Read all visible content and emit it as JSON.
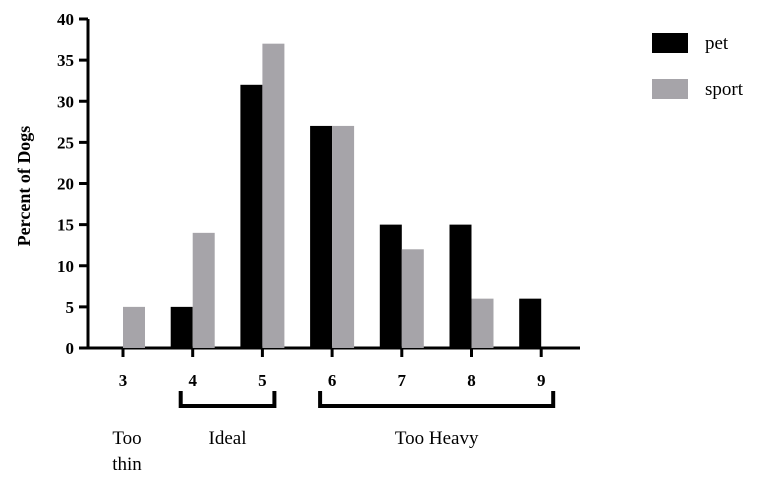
{
  "chart_data": {
    "type": "bar",
    "categories": [
      "3",
      "4",
      "5",
      "6",
      "7",
      "8",
      "9"
    ],
    "series": [
      {
        "name": "pet",
        "values": [
          0,
          5,
          32,
          27,
          15,
          15,
          6
        ],
        "color": "#000000"
      },
      {
        "name": "sport",
        "values": [
          5,
          14,
          37,
          27,
          12,
          6,
          0
        ],
        "color": "#a6a4a9"
      }
    ],
    "title": "",
    "xlabel": "",
    "ylabel": "Percent of Dogs",
    "ylim": [
      0,
      40
    ],
    "yticks": [
      "0",
      "5",
      "10",
      "15",
      "20",
      "25",
      "30",
      "35",
      "40"
    ],
    "grid": false,
    "legend_position": "top-right",
    "groups": [
      {
        "label": "Too\nthin",
        "categories": [
          "3"
        ],
        "bracket": false
      },
      {
        "label": "Ideal",
        "categories": [
          "4",
          "5"
        ],
        "bracket": true
      },
      {
        "label": "Too Heavy",
        "categories": [
          "6",
          "7",
          "8",
          "9"
        ],
        "bracket": true
      }
    ]
  }
}
